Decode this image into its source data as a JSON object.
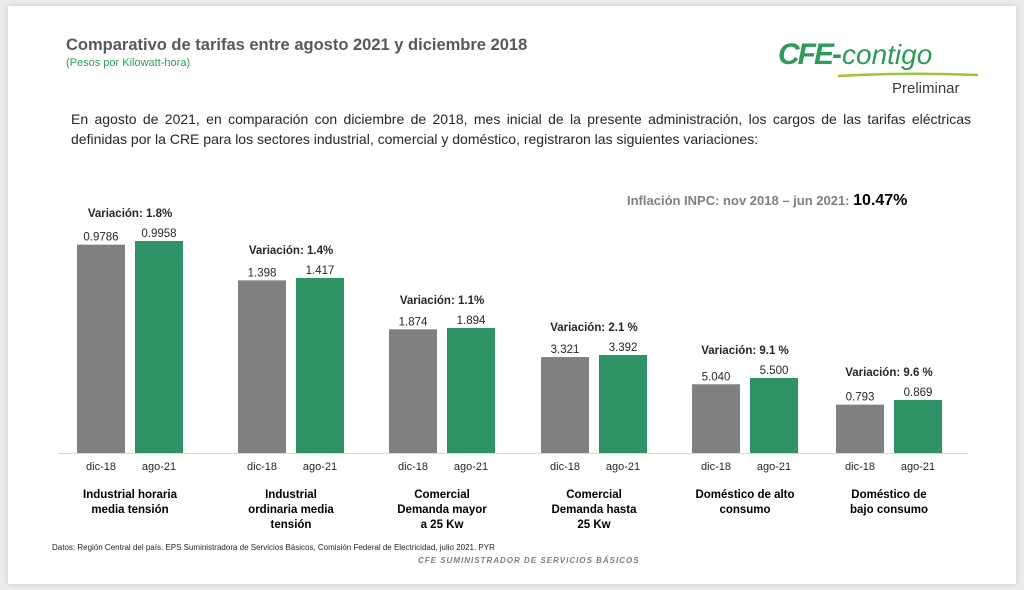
{
  "header": {
    "title": "Comparativo de tarifas entre agosto 2021 y diciembre 2018",
    "subtitle": "(Pesos por Kilowatt-hora)",
    "logo_cfe": "CFE",
    "logo_contigo": "contigo",
    "status": "Preliminar"
  },
  "intro_text": "En agosto de 2021, en comparación con diciembre de 2018, mes inicial de la presente administración, los cargos de las tarifas eléctricas definidas por la CRE para los sectores industrial, comercial y doméstico, registraron las siguientes variaciones:",
  "inflation": {
    "label": "Inflación INPC: nov 2018 – jun 2021:",
    "value": "10.47%"
  },
  "colors": {
    "dic18": "#808080",
    "ago21": "#2e9466",
    "brand_green": "#2f9a5a"
  },
  "chart_data": {
    "type": "bar",
    "series": [
      {
        "name": "dic-18",
        "values": [
          0.9786,
          1.398,
          1.874,
          3.321,
          5.04,
          0.793
        ]
      },
      {
        "name": "ago-21",
        "values": [
          0.9958,
          1.417,
          1.894,
          3.392,
          5.5,
          0.869
        ]
      }
    ],
    "groups": [
      {
        "category": "Industrial horaria media tensión",
        "lines": [
          "Industrial horaria",
          "media tensión"
        ],
        "variation": "Variación: 1.8%",
        "labels": [
          "0.9786",
          "0.9958"
        ],
        "ticks": [
          "dic-18",
          "ago-21"
        ]
      },
      {
        "category": "Industrial ordinaria media tensión",
        "lines": [
          "Industrial",
          "ordinaria media",
          "tensión"
        ],
        "variation": "Variación: 1.4%",
        "labels": [
          "1.398",
          "1.417"
        ],
        "ticks": [
          "dic-18",
          "ago-21"
        ]
      },
      {
        "category": "Comercial Demanda mayor a 25 Kw",
        "lines": [
          "Comercial",
          "Demanda mayor",
          "a 25 Kw"
        ],
        "variation": "Variación: 1.1%",
        "labels": [
          "1.874",
          "1.894"
        ],
        "ticks": [
          "dic-18",
          "ago-21"
        ]
      },
      {
        "category": "Comercial Demanda hasta 25 Kw",
        "lines": [
          "Comercial",
          "Demanda hasta",
          "25 Kw"
        ],
        "variation": "Variación:  2.1 %",
        "labels": [
          "3.321",
          "3.392"
        ],
        "ticks": [
          "dic-18",
          "ago-21"
        ]
      },
      {
        "category": "Doméstico de alto consumo",
        "lines": [
          "Doméstico de alto",
          "consumo"
        ],
        "variation": "Variación: 9.1 %",
        "labels": [
          "5.040",
          "5.500"
        ],
        "ticks": [
          "dic-18",
          "ago-21"
        ]
      },
      {
        "category": "Doméstico de bajo consumo",
        "lines": [
          "Doméstico de",
          "bajo consumo"
        ],
        "variation": "Variación: 9.6 %",
        "labels": [
          "0.793",
          "0.869"
        ],
        "ticks": [
          "dic-18",
          "ago-21"
        ]
      }
    ],
    "scale": "independent per group",
    "grid": false
  },
  "source_note": "Datos: Región Central del país. EPS Suministradora de Servicios Básicos, Comisión Federal de Electricidad, julio 2021. PYR",
  "footer": "CFE SUMINISTRADOR DE SERVICIOS BÁSICOS"
}
